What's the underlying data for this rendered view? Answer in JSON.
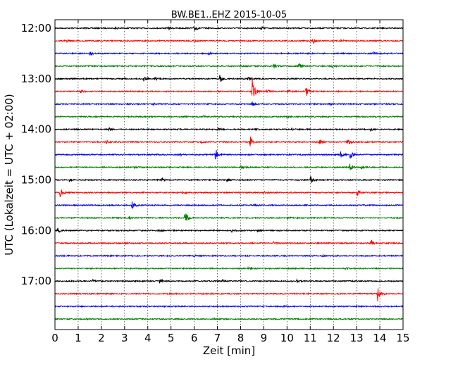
{
  "chart_data": {
    "type": "line",
    "title": "BW.BE1..EHZ 2015-10-05",
    "xlabel": "Zeit  [min]",
    "ylabel": "UTC (Lokalzeit = UTC + 02:00)",
    "xlim": [
      0,
      15
    ],
    "x_ticks": [
      "0",
      "1",
      "2",
      "3",
      "4",
      "5",
      "6",
      "7",
      "8",
      "9",
      "10",
      "11",
      "12",
      "13",
      "14",
      "15"
    ],
    "y_tick_labels": [
      "12:00",
      "13:00",
      "14:00",
      "15:00",
      "16:00",
      "17:00"
    ],
    "grid": true,
    "trace_colors": [
      "#000000",
      "#ff0000",
      "#0000ff",
      "#008000"
    ],
    "traces": [
      {
        "start": "12:00",
        "events": [
          [
            6.0,
            0.6
          ],
          [
            8.9,
            0.4
          ],
          [
            4.9,
            0.2
          ],
          [
            2.6,
            0.15
          ]
        ]
      },
      {
        "start": "12:15",
        "events": [
          [
            11.1,
            0.5
          ],
          [
            12.3,
            0.25
          ],
          [
            6.0,
            0.2
          ],
          [
            0.5,
            0.15
          ]
        ]
      },
      {
        "start": "12:30",
        "events": [
          [
            1.5,
            0.35
          ],
          [
            13.7,
            0.2
          ],
          [
            6.6,
            0.15
          ]
        ]
      },
      {
        "start": "12:45",
        "events": [
          [
            9.4,
            0.7
          ],
          [
            10.5,
            0.6
          ],
          [
            11.9,
            0.2
          ],
          [
            8.0,
            0.15
          ]
        ]
      },
      {
        "start": "13:00",
        "events": [
          [
            3.8,
            0.5
          ],
          [
            4.3,
            0.3
          ],
          [
            7.1,
            0.6
          ],
          [
            8.3,
            0.3
          ]
        ]
      },
      {
        "start": "13:15",
        "events": [
          [
            8.5,
            2.4
          ],
          [
            10.8,
            1.1
          ],
          [
            1.1,
            0.3
          ],
          [
            9.1,
            0.4
          ],
          [
            10.0,
            0.3
          ]
        ]
      },
      {
        "start": "13:30",
        "events": [
          [
            8.5,
            0.6
          ],
          [
            4.2,
            0.15
          ],
          [
            11.8,
            0.15
          ]
        ]
      },
      {
        "start": "13:45",
        "events": [
          [
            6.4,
            0.15
          ],
          [
            10.0,
            0.15
          ]
        ]
      },
      {
        "start": "14:00",
        "events": [
          [
            2.3,
            0.3
          ],
          [
            7.0,
            0.25
          ],
          [
            8.6,
            0.25
          ],
          [
            10.2,
            0.2
          ],
          [
            13.6,
            0.2
          ]
        ]
      },
      {
        "start": "14:15",
        "events": [
          [
            8.4,
            1.1
          ],
          [
            11.4,
            0.6
          ],
          [
            12.6,
            0.7
          ],
          [
            2.2,
            0.2
          ],
          [
            6.3,
            0.2
          ]
        ]
      },
      {
        "start": "14:30",
        "events": [
          [
            6.9,
            1.2
          ],
          [
            12.7,
            0.8
          ],
          [
            12.3,
            0.6
          ],
          [
            5.4,
            0.2
          ]
        ]
      },
      {
        "start": "14:45",
        "events": [
          [
            8.0,
            0.3
          ],
          [
            12.7,
            0.6
          ],
          [
            13.2,
            0.3
          ],
          [
            3.4,
            0.15
          ]
        ]
      },
      {
        "start": "15:00",
        "events": [
          [
            11.0,
            0.7
          ],
          [
            4.6,
            0.3
          ],
          [
            0.6,
            0.2
          ],
          [
            7.4,
            0.25
          ]
        ]
      },
      {
        "start": "15:15",
        "events": [
          [
            0.2,
            1.0
          ],
          [
            13.0,
            0.6
          ],
          [
            5.5,
            0.2
          ],
          [
            9.0,
            0.15
          ]
        ]
      },
      {
        "start": "15:30",
        "events": [
          [
            3.3,
            0.9
          ],
          [
            8.6,
            0.15
          ]
        ]
      },
      {
        "start": "15:45",
        "events": [
          [
            5.6,
            1.5
          ],
          [
            10.0,
            0.2
          ],
          [
            3.2,
            0.15
          ]
        ]
      },
      {
        "start": "16:00",
        "events": [
          [
            0.1,
            0.5
          ],
          [
            7.6,
            0.3
          ],
          [
            8.7,
            0.3
          ],
          [
            4.5,
            0.15
          ]
        ]
      },
      {
        "start": "16:15",
        "events": [
          [
            13.6,
            0.7
          ],
          [
            9.4,
            0.2
          ],
          [
            3.0,
            0.15
          ]
        ]
      },
      {
        "start": "16:30",
        "events": [
          [
            6.0,
            0.15
          ],
          [
            11.5,
            0.15
          ]
        ]
      },
      {
        "start": "16:45",
        "events": [
          [
            8.3,
            0.15
          ],
          [
            12.5,
            0.15
          ]
        ]
      },
      {
        "start": "17:00",
        "events": [
          [
            4.5,
            0.6
          ],
          [
            1.6,
            0.25
          ],
          [
            10.4,
            0.25
          ],
          [
            7.2,
            0.15
          ]
        ]
      },
      {
        "start": "17:15",
        "events": [
          [
            13.9,
            1.4
          ],
          [
            4.9,
            0.15
          ]
        ]
      },
      {
        "start": "17:30",
        "events": [
          [
            9.8,
            0.15
          ],
          [
            2.4,
            0.1
          ]
        ]
      },
      {
        "start": "17:45",
        "events": [
          [
            6.8,
            0.1
          ],
          [
            11.0,
            0.1
          ]
        ]
      }
    ]
  }
}
